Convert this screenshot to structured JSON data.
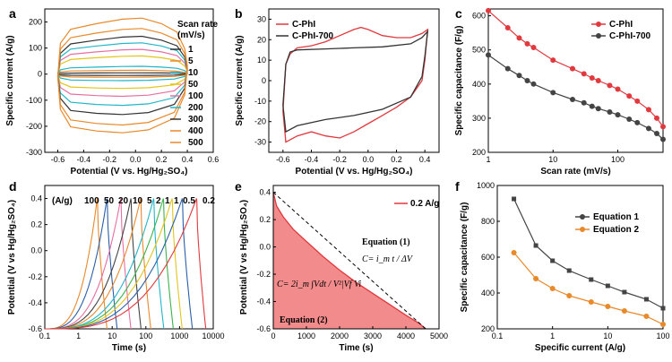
{
  "panel_labels": [
    "a",
    "b",
    "c",
    "d",
    "e",
    "f"
  ],
  "colors": {
    "red": "#e0393e",
    "dark": "#333333",
    "orange": "#e8892a",
    "cyan": "#21b6c9",
    "green": "#3cb34a",
    "yellow": "#e3c51a",
    "blue": "#2a5fa8",
    "pink": "#e86fa0",
    "fill_e": "#f28b8b"
  },
  "chart_data": [
    {
      "panel": "a",
      "type": "line",
      "title": "",
      "xlabel": "Potential (V vs. Hg/Hg₂SO₄)",
      "ylabel": "Specific current (A/g)",
      "xlim": [
        -0.7,
        0.6
      ],
      "ylim": [
        -300,
        250
      ],
      "xticks": [
        -0.6,
        -0.4,
        -0.2,
        0.0,
        0.2,
        0.4,
        0.6
      ],
      "xtick_labels": [
        "-0.6",
        "-0.4",
        "-0.2",
        "0.0",
        "0.2",
        "0.4",
        "0.6"
      ],
      "yticks": [
        -300,
        -200,
        -100,
        0,
        100,
        200
      ],
      "ytick_labels": [
        "-300",
        "-200",
        "-100",
        "0",
        "100",
        "200"
      ],
      "legend_title": "Scan rate\n(mV/s)",
      "legend_title_lines": [
        "Scan rate",
        "(mV/s)"
      ],
      "series": [
        {
          "name": "1",
          "color": "#333333",
          "upper_peak": 5,
          "lower_peak": -5
        },
        {
          "name": "5",
          "color": "#e8892a",
          "upper_peak": 15,
          "lower_peak": -12
        },
        {
          "name": "10",
          "color": "#21b6c9",
          "upper_peak": 30,
          "lower_peak": -25
        },
        {
          "name": "50",
          "color": "#e3c51a",
          "upper_peak": 70,
          "lower_peak": -55
        },
        {
          "name": "100",
          "color": "#e86fa0",
          "upper_peak": 95,
          "lower_peak": -85
        },
        {
          "name": "200",
          "color": "#21b6c9",
          "upper_peak": 120,
          "lower_peak": -120
        },
        {
          "name": "300",
          "color": "#333333",
          "upper_peak": 145,
          "lower_peak": -155
        },
        {
          "name": "400",
          "color": "#e8892a",
          "upper_peak": 175,
          "lower_peak": -195
        },
        {
          "name": "500",
          "color": "#e8892a",
          "upper_peak": 215,
          "lower_peak": -225
        }
      ]
    },
    {
      "panel": "b",
      "type": "line",
      "title": "",
      "xlabel": "Potential (V vs. Hg/Hg₂SO₄)",
      "ylabel": "Specific current (A/g)",
      "xlim": [
        -0.7,
        0.5
      ],
      "ylim": [
        -35,
        35
      ],
      "xticks": [
        -0.6,
        -0.4,
        -0.2,
        0.0,
        0.2,
        0.4
      ],
      "xtick_labels": [
        "-0.6",
        "-0.4",
        "-0.2",
        "0.0",
        "0.2",
        "0.4"
      ],
      "yticks": [
        -30,
        -20,
        -10,
        0,
        10,
        20,
        30
      ],
      "ytick_labels": [
        "-30",
        "-20",
        "-10",
        "0",
        "10",
        "20",
        "30"
      ],
      "series": [
        {
          "name": "C-PhI",
          "color": "#e0393e",
          "upper": [
            [
              -0.6,
              -15
            ],
            [
              -0.58,
              8
            ],
            [
              -0.55,
              13
            ],
            [
              -0.5,
              16
            ],
            [
              -0.4,
              17
            ],
            [
              -0.3,
              19
            ],
            [
              -0.2,
              22
            ],
            [
              -0.1,
              25
            ],
            [
              -0.05,
              26
            ],
            [
              0.0,
              25
            ],
            [
              0.1,
              22
            ],
            [
              0.2,
              21
            ],
            [
              0.3,
              21
            ],
            [
              0.38,
              23
            ],
            [
              0.42,
              25
            ]
          ],
          "lower": [
            [
              0.42,
              25
            ],
            [
              0.4,
              10
            ],
            [
              0.38,
              0
            ],
            [
              0.3,
              -8
            ],
            [
              0.2,
              -13
            ],
            [
              0.1,
              -17
            ],
            [
              0.0,
              -21
            ],
            [
              -0.1,
              -25
            ],
            [
              -0.2,
              -28
            ],
            [
              -0.3,
              -27
            ],
            [
              -0.4,
              -25
            ],
            [
              -0.5,
              -27
            ],
            [
              -0.58,
              -30
            ],
            [
              -0.6,
              -15
            ]
          ]
        },
        {
          "name": "C-PhI-700",
          "color": "#333333",
          "upper": [
            [
              -0.6,
              -12
            ],
            [
              -0.58,
              8
            ],
            [
              -0.55,
              14
            ],
            [
              -0.5,
              15
            ],
            [
              -0.3,
              15.5
            ],
            [
              -0.1,
              16
            ],
            [
              0.1,
              16.5
            ],
            [
              0.3,
              18
            ],
            [
              0.38,
              21
            ],
            [
              0.42,
              24
            ]
          ],
          "lower": [
            [
              0.42,
              24
            ],
            [
              0.4,
              12
            ],
            [
              0.38,
              2
            ],
            [
              0.3,
              -8
            ],
            [
              0.1,
              -14
            ],
            [
              -0.1,
              -17
            ],
            [
              -0.3,
              -19
            ],
            [
              -0.5,
              -22
            ],
            [
              -0.58,
              -25
            ],
            [
              -0.6,
              -12
            ]
          ]
        }
      ]
    },
    {
      "panel": "c",
      "type": "scatter",
      "title": "",
      "xlabel": "Scan rate (mV/s)",
      "ylabel": "Specific capacitance (F/g)",
      "xscale": "log",
      "xlim": [
        1,
        500
      ],
      "ylim": [
        200,
        620
      ],
      "xticks": [
        1,
        10,
        100
      ],
      "xtick_labels": [
        "1",
        "10",
        "100"
      ],
      "yticks": [
        200,
        300,
        400,
        500,
        600
      ],
      "ytick_labels": [
        "200",
        "300",
        "400",
        "500",
        "600"
      ],
      "x": [
        1,
        2,
        3,
        4,
        5,
        10,
        20,
        30,
        40,
        50,
        75,
        100,
        150,
        200,
        300,
        400,
        500
      ],
      "series": [
        {
          "name": "C-PhI",
          "color": "#e0393e",
          "values": [
            615,
            565,
            535,
            518,
            507,
            470,
            445,
            430,
            418,
            410,
            396,
            385,
            365,
            350,
            325,
            300,
            275
          ]
        },
        {
          "name": "C-PhI-700",
          "color": "#444444",
          "values": [
            485,
            445,
            425,
            410,
            400,
            375,
            355,
            345,
            335,
            328,
            318,
            310,
            297,
            287,
            270,
            255,
            238
          ]
        }
      ]
    },
    {
      "panel": "d",
      "type": "line",
      "title": "",
      "xlabel": "Time (s)",
      "ylabel": "Potential (V vs Hg/Hg₂SO₄)",
      "xscale": "log",
      "xlim": [
        0.1,
        10000
      ],
      "ylim": [
        -0.6,
        0.5
      ],
      "xticks": [
        0.1,
        1,
        10,
        100,
        1000,
        10000
      ],
      "xtick_labels": [
        "0.1",
        "1",
        "10",
        "100",
        "1000",
        "10000"
      ],
      "yticks": [
        -0.6,
        -0.4,
        -0.2,
        0.0,
        0.2,
        0.4
      ],
      "ytick_labels": [
        "-0.6",
        "-0.4",
        "-0.2",
        "0.0",
        "0.2",
        "0.4"
      ],
      "legend_prefix": "(A/g)",
      "series": [
        {
          "name": "100",
          "color": "#e8892a",
          "t_peak": 3.6,
          "t_end": 7
        },
        {
          "name": "50",
          "color": "#2a5fa8",
          "t_peak": 7,
          "t_end": 14
        },
        {
          "name": "20",
          "color": "#e86fa0",
          "t_peak": 18,
          "t_end": 36
        },
        {
          "name": "10",
          "color": "#444444",
          "t_peak": 36,
          "t_end": 72
        },
        {
          "name": "5",
          "color": "#e8892a",
          "t_peak": 70,
          "t_end": 140
        },
        {
          "name": "2",
          "color": "#21b6c9",
          "t_peak": 170,
          "t_end": 340
        },
        {
          "name": "1",
          "color": "#3cb34a",
          "t_peak": 330,
          "t_end": 650
        },
        {
          "name": "1",
          "color": "#e3c51a",
          "t_peak": 600,
          "t_end": 1200
        },
        {
          "name": "0.5",
          "color": "#2a5fa8",
          "t_peak": 1200,
          "t_end": 2400
        },
        {
          "name": "0.2",
          "color": "#e0393e",
          "t_peak": 3200,
          "t_end": 6000
        }
      ]
    },
    {
      "panel": "e",
      "type": "area",
      "title": "",
      "xlabel": "Time (s)",
      "ylabel": "Potential (V vs Hg/Hg₂SO₄)",
      "xlim": [
        0,
        5000
      ],
      "ylim": [
        -0.6,
        0.45
      ],
      "xticks": [
        0,
        1000,
        2000,
        3000,
        4000,
        5000
      ],
      "xtick_labels": [
        "0",
        "1000",
        "2000",
        "3000",
        "4000",
        "5000"
      ],
      "yticks": [
        -0.6,
        -0.4,
        -0.2,
        0.0,
        0.2,
        0.4
      ],
      "ytick_labels": [
        "-0.6",
        "-0.4",
        "-0.2",
        "0.0",
        "0.2",
        "0.4"
      ],
      "series": [
        {
          "name": "0.2 A/g",
          "color": "#e0393e",
          "x": [
            0,
            100,
            300,
            600,
            1000,
            1500,
            2000,
            2500,
            3000,
            3500,
            4000,
            4400,
            4600
          ],
          "values": [
            0.4,
            0.3,
            0.22,
            0.13,
            0.04,
            -0.07,
            -0.17,
            -0.26,
            -0.34,
            -0.42,
            -0.5,
            -0.56,
            -0.6
          ]
        },
        {
          "name": "linear",
          "color": "#000000",
          "dashed": true,
          "x": [
            0,
            4600
          ],
          "values": [
            0.4,
            -0.6
          ]
        }
      ],
      "annotations": {
        "eq1_title": "Equation (1)",
        "eq1_formula": "C= i_m t / ΔV",
        "eq2_title": "Equation (2)",
        "eq2_formula": "C= 2i_m ∫Vdt / V²|Vf Vi"
      }
    },
    {
      "panel": "f",
      "type": "line",
      "title": "",
      "xlabel": "Specific current (A/g)",
      "ylabel": "Specific capacitance (F/g)",
      "xscale": "log",
      "xlim": [
        0.1,
        100
      ],
      "ylim": [
        200,
        1000
      ],
      "xticks": [
        0.1,
        1,
        10,
        100
      ],
      "xtick_labels": [
        "0.1",
        "1",
        "10",
        "100"
      ],
      "yticks": [
        200,
        400,
        600,
        800,
        1000
      ],
      "ytick_labels": [
        "200",
        "400",
        "600",
        "800",
        "1000"
      ],
      "x": [
        0.2,
        0.5,
        1,
        2,
        5,
        10,
        20,
        50,
        100
      ],
      "series": [
        {
          "name": "Equation 1",
          "color": "#444444",
          "values": [
            925,
            665,
            580,
            525,
            475,
            440,
            405,
            365,
            315
          ]
        },
        {
          "name": "Equation 2",
          "color": "#e8892a",
          "values": [
            625,
            480,
            425,
            385,
            350,
            325,
            300,
            270,
            225
          ]
        }
      ]
    }
  ]
}
